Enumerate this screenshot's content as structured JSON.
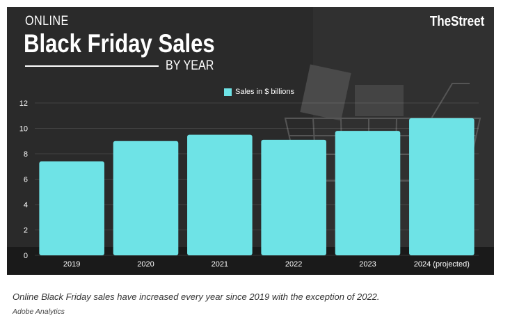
{
  "header": {
    "kicker": "ONLINE",
    "title": "Black Friday Sales",
    "subtitle": "BY YEAR",
    "brand": "TheStreet"
  },
  "caption": {
    "text": "Online Black Friday sales have increased every year since 2019 with the exception of 2022.",
    "source": "Adobe Analytics"
  },
  "colors": {
    "bar": "#6ee3e6",
    "panel_background": "#2c2c2c",
    "text": "#ffffff"
  },
  "chart_data": {
    "type": "bar",
    "title": "Black Friday Sales",
    "xlabel": "",
    "ylabel": "",
    "categories": [
      "2019",
      "2020",
      "2021",
      "2022",
      "2023",
      "2024 (projected)"
    ],
    "series": [
      {
        "name": "Sales in $ billions",
        "values": [
          7.4,
          9.0,
          9.5,
          9.1,
          9.8,
          10.8
        ]
      }
    ],
    "ylim": [
      0,
      12
    ],
    "yticks": [
      "0",
      "2",
      "4",
      "6",
      "8",
      "10",
      "12"
    ],
    "grid": true,
    "legend": "top-center"
  }
}
